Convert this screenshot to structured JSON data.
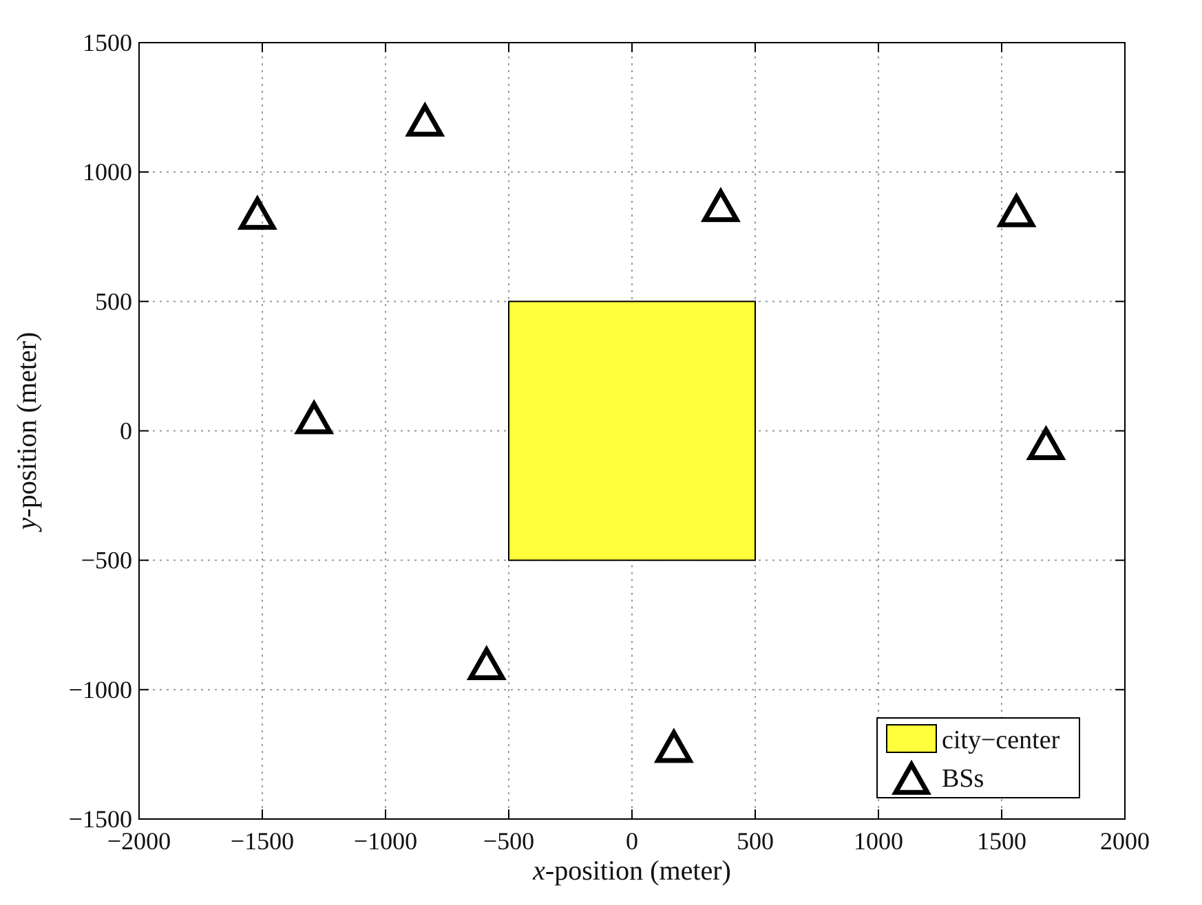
{
  "chart_data": {
    "type": "scatter",
    "title": "",
    "xlabel": {
      "var": "x",
      "text": "-position (meter)"
    },
    "ylabel": {
      "var": "y",
      "text": "-position (meter)"
    },
    "xlim": [
      -2000,
      2000
    ],
    "ylim": [
      -1500,
      1500
    ],
    "xticks": [
      -2000,
      -1500,
      -1000,
      -500,
      0,
      500,
      1000,
      1500,
      2000
    ],
    "yticks": [
      -1500,
      -1000,
      -500,
      0,
      500,
      1000,
      1500
    ],
    "xtick_labels": [
      "−2000",
      "−1500",
      "−1000",
      "−500",
      "0",
      "500",
      "1000",
      "1500",
      "2000"
    ],
    "ytick_labels": [
      "−1500",
      "−1000",
      "−500",
      "0",
      "500",
      "1000",
      "1500"
    ],
    "grid": true,
    "legend_position": "bottom-right",
    "city_center": {
      "name": "city−center",
      "x": [
        -500,
        500
      ],
      "y": [
        -500,
        500
      ],
      "color": "#ffff3c"
    },
    "series": [
      {
        "name": "BSs",
        "marker": "triangle",
        "color": "#000000",
        "points": [
          {
            "x": -840,
            "y": 1200
          },
          {
            "x": -1520,
            "y": 840
          },
          {
            "x": 360,
            "y": 870
          },
          {
            "x": 1560,
            "y": 850
          },
          {
            "x": -1290,
            "y": 50
          },
          {
            "x": 1680,
            "y": -50
          },
          {
            "x": -590,
            "y": -900
          },
          {
            "x": 170,
            "y": -1220
          }
        ]
      }
    ]
  }
}
